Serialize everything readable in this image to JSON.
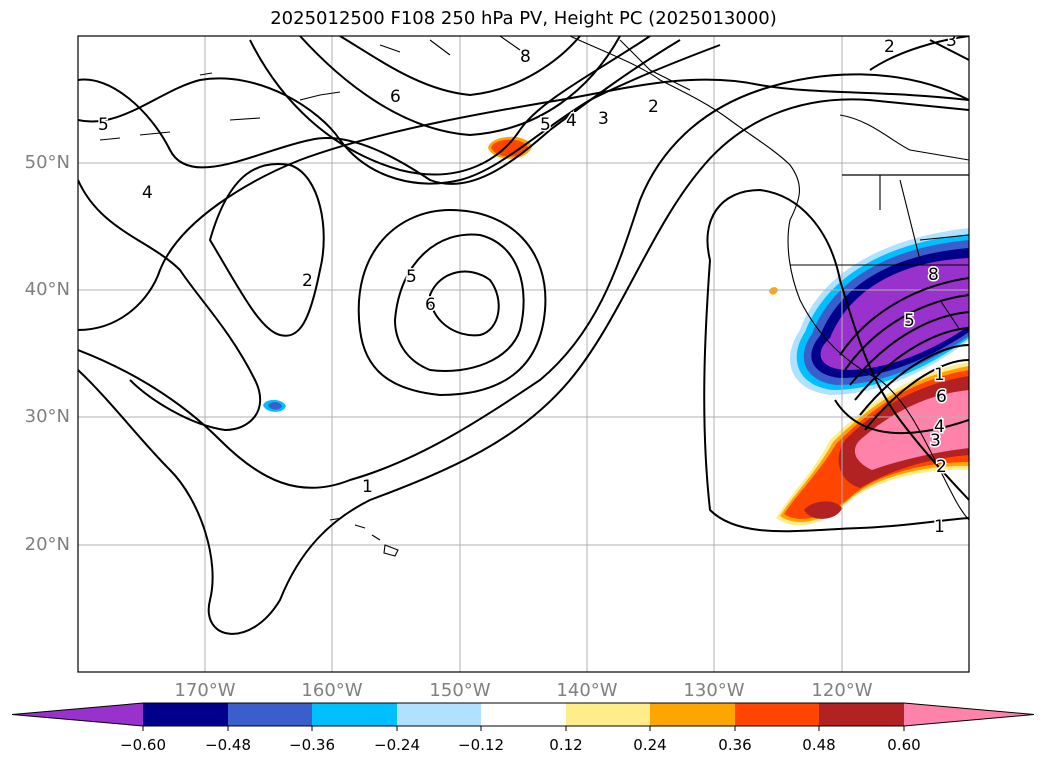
{
  "title": "2025012500 F108 250 hPa PV, Height PC (2025013000)",
  "map": {
    "lat_labels": [
      "50°N",
      "40°N",
      "30°N",
      "20°N"
    ],
    "lon_labels": [
      "170°W",
      "160°W",
      "150°W",
      "140°W",
      "130°W",
      "120°W"
    ],
    "contour_labels": [
      "5",
      "4",
      "2",
      "6",
      "5",
      "6",
      "8",
      "5",
      "4",
      "3",
      "2",
      "1",
      "2",
      "3",
      "1",
      "8",
      "5",
      "6",
      "4",
      "3",
      "2",
      "1"
    ]
  },
  "colorbar": {
    "ticks": [
      "−0.60",
      "−0.48",
      "−0.36",
      "−0.24",
      "−0.12",
      "0.12",
      "0.24",
      "0.36",
      "0.48",
      "0.60"
    ],
    "colors": [
      "#9932cc",
      "#00008b",
      "#3a5fcd",
      "#00bfff",
      "#b0e2ff",
      "#ffffff",
      "#ffec8b",
      "#ffa500",
      "#ff4500",
      "#b22222",
      "#ff82ab"
    ]
  }
}
